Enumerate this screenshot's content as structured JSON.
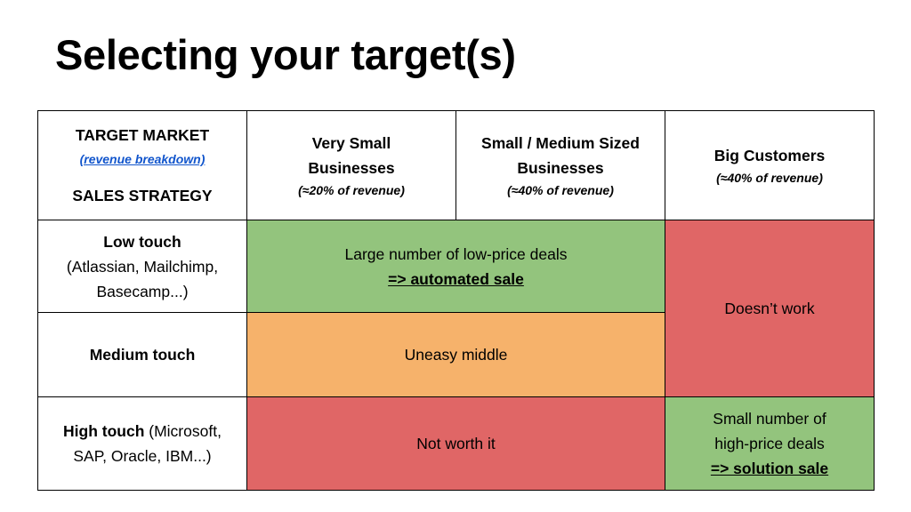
{
  "slide": {
    "title": "Selecting your target(s)"
  },
  "corner": {
    "target_market": "TARGET MARKET",
    "revenue_breakdown": "(revenue breakdown)",
    "sales_strategy": "SALES STRATEGY"
  },
  "columns": [
    {
      "label_line1": "Very Small",
      "label_line2": "Businesses",
      "revenue": "(≈20% of revenue)"
    },
    {
      "label_line1": "Small / Medium Sized",
      "label_line2": "Businesses",
      "revenue": "(≈40% of revenue)"
    },
    {
      "label_line1": "Big Customers",
      "revenue": "(≈40% of revenue)"
    }
  ],
  "rows": [
    {
      "strong": "Low touch",
      "line2": "(Atlassian, Mailchimp,",
      "line3": "Basecamp...)"
    },
    {
      "strong": "Medium touch"
    },
    {
      "strong": "High touch",
      "rest": " (Microsoft,",
      "line2": "SAP, Oracle, IBM...)"
    }
  ],
  "cells": {
    "low_touch_small": {
      "line1": "Large number of low-price deals",
      "line2": "=> automated sale"
    },
    "big_low_medium": "Doesn’t work",
    "medium_small": "Uneasy middle",
    "high_small": "Not worth it",
    "high_big": {
      "line1": "Small number of",
      "line2": "high-price deals",
      "line3": "=> solution sale"
    }
  },
  "colors": {
    "green": "#93c47d",
    "orange": "#f6b26b",
    "red": "#e06666",
    "link": "#1155cc"
  }
}
